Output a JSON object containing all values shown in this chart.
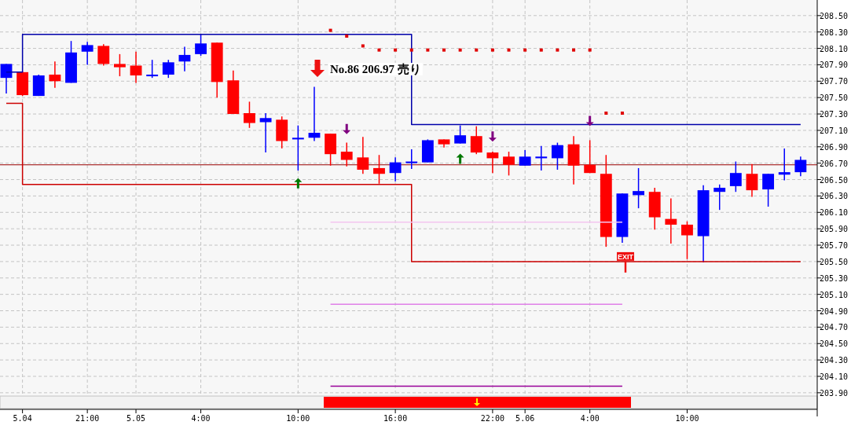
{
  "chart_data": {
    "type": "candlestick",
    "categories": [
      null,
      "5.04",
      null,
      null,
      null,
      "21:00",
      null,
      null,
      "5.05",
      null,
      null,
      null,
      "4:00",
      null,
      null,
      null,
      null,
      null,
      "10:00",
      null,
      null,
      null,
      null,
      null,
      "16:00",
      null,
      null,
      null,
      null,
      null,
      "22:00",
      null,
      "5.06",
      null,
      null,
      null,
      "4:00",
      null,
      null,
      null,
      null,
      null,
      "10:00",
      null,
      null,
      null,
      null,
      null,
      null,
      null
    ],
    "ohlc": [
      [
        207.74,
        207.91,
        207.55,
        207.91
      ],
      [
        207.81,
        207.82,
        207.52,
        207.53
      ],
      [
        207.52,
        207.78,
        207.52,
        207.77
      ],
      [
        207.78,
        207.94,
        207.62,
        207.7
      ],
      [
        207.68,
        208.19,
        207.68,
        208.05
      ],
      [
        208.06,
        208.18,
        207.9,
        208.14
      ],
      [
        208.13,
        208.15,
        207.89,
        207.91
      ],
      [
        207.91,
        208.03,
        207.76,
        207.87
      ],
      [
        207.89,
        208.06,
        207.68,
        207.77
      ],
      [
        207.76,
        207.96,
        207.74,
        207.78
      ],
      [
        207.78,
        207.96,
        207.74,
        207.93
      ],
      [
        207.94,
        208.12,
        207.82,
        208.02
      ],
      [
        208.03,
        208.27,
        208.01,
        208.16
      ],
      [
        208.17,
        208.17,
        207.5,
        207.69
      ],
      [
        207.71,
        207.83,
        207.3,
        207.3
      ],
      [
        207.31,
        207.45,
        207.13,
        207.19
      ],
      [
        207.2,
        207.31,
        206.83,
        207.25
      ],
      [
        207.23,
        207.27,
        206.88,
        206.97
      ],
      [
        206.99,
        207.16,
        206.61,
        207.01
      ],
      [
        207.01,
        207.63,
        206.97,
        207.07
      ],
      [
        207.06,
        207.06,
        206.67,
        206.81
      ],
      [
        206.84,
        206.95,
        206.66,
        206.74
      ],
      [
        206.77,
        207.02,
        206.57,
        206.62
      ],
      [
        206.64,
        206.8,
        206.45,
        206.57
      ],
      [
        206.58,
        206.77,
        206.48,
        206.71
      ],
      [
        206.7,
        206.87,
        206.63,
        206.72
      ],
      [
        206.71,
        206.99,
        206.71,
        206.98
      ],
      [
        206.99,
        206.99,
        206.89,
        206.93
      ],
      [
        206.94,
        207.16,
        206.94,
        207.04
      ],
      [
        207.03,
        207.15,
        206.81,
        206.83
      ],
      [
        206.83,
        206.84,
        206.58,
        206.76
      ],
      [
        206.78,
        206.84,
        206.55,
        206.68
      ],
      [
        206.67,
        206.86,
        206.67,
        206.78
      ],
      [
        206.76,
        206.91,
        206.61,
        206.78
      ],
      [
        206.76,
        206.95,
        206.62,
        206.92
      ],
      [
        206.93,
        207.03,
        206.44,
        206.67
      ],
      [
        206.68,
        206.98,
        206.58,
        206.58
      ],
      [
        206.57,
        206.8,
        205.68,
        205.8
      ],
      [
        205.8,
        206.33,
        205.73,
        206.33
      ],
      [
        206.31,
        206.64,
        206.15,
        206.36
      ],
      [
        206.35,
        206.4,
        205.89,
        206.04
      ],
      [
        206.02,
        206.27,
        205.72,
        205.95
      ],
      [
        205.95,
        205.99,
        205.53,
        205.82
      ],
      [
        205.81,
        206.43,
        205.49,
        206.37
      ],
      [
        206.35,
        206.44,
        206.13,
        206.4
      ],
      [
        206.42,
        206.72,
        206.35,
        206.58
      ],
      [
        206.57,
        206.69,
        206.29,
        206.37
      ],
      [
        206.38,
        206.57,
        206.17,
        206.57
      ],
      [
        206.56,
        206.88,
        206.49,
        206.59
      ],
      [
        206.59,
        206.78,
        206.54,
        206.74
      ]
    ],
    "colors": [
      "#0000ff",
      "#ff0000",
      "#0000ff",
      "#ff0000",
      "#0000ff",
      "#0000ff",
      "#ff0000",
      "#ff0000",
      "#ff0000",
      "#0000ff",
      "#0000ff",
      "#0000ff",
      "#0000ff",
      "#ff0000",
      "#ff0000",
      "#ff0000",
      "#0000ff",
      "#ff0000",
      "#0000ff",
      "#0000ff",
      "#ff0000",
      "#ff0000",
      "#ff0000",
      "#ff0000",
      "#0000ff",
      "#0000ff",
      "#0000ff",
      "#ff0000",
      "#0000ff",
      "#ff0000",
      "#ff0000",
      "#ff0000",
      "#0000ff",
      "#0000ff",
      "#0000ff",
      "#ff0000",
      "#ff0000",
      "#ff0000",
      "#0000ff",
      "#0000ff",
      "#ff0000",
      "#ff0000",
      "#ff0000",
      "#0000ff",
      "#0000ff",
      "#0000ff",
      "#ff0000",
      "#0000ff",
      "#0000ff",
      "#0000ff"
    ],
    "series": [
      {
        "type": "step",
        "color": "#0000aa",
        "values": [
          207.81,
          208.27,
          208.27,
          208.27,
          208.27,
          208.27,
          208.27,
          208.27,
          208.27,
          208.27,
          208.27,
          208.27,
          208.27,
          208.27,
          208.27,
          208.27,
          208.27,
          208.27,
          208.27,
          208.27,
          208.27,
          208.27,
          208.27,
          208.27,
          208.27,
          207.17,
          207.17,
          207.17,
          207.17,
          207.17,
          207.17,
          207.17,
          207.17,
          207.17,
          207.17,
          207.17,
          207.17,
          207.17,
          207.17,
          207.17,
          207.17,
          207.17,
          207.17,
          207.17,
          207.17,
          207.17,
          207.17,
          207.17,
          207.17,
          207.17
        ]
      },
      {
        "type": "step",
        "color": "#cc0000",
        "values": [
          207.43,
          206.44,
          206.44,
          206.44,
          206.44,
          206.44,
          206.44,
          206.44,
          206.44,
          206.44,
          206.44,
          206.44,
          206.44,
          206.44,
          206.44,
          206.44,
          206.44,
          206.44,
          206.44,
          206.44,
          206.44,
          206.44,
          206.44,
          206.44,
          206.44,
          205.5,
          205.5,
          205.5,
          205.5,
          205.5,
          205.5,
          205.5,
          205.5,
          205.5,
          205.5,
          205.5,
          205.5,
          205.5,
          205.5,
          205.5,
          205.5,
          205.5,
          205.5,
          205.5,
          205.5,
          205.5,
          205.5,
          205.5,
          205.5,
          205.5
        ]
      },
      {
        "type": "line",
        "color": "#f4c6f0",
        "values": [
          null,
          null,
          null,
          null,
          null,
          null,
          null,
          null,
          null,
          null,
          null,
          null,
          null,
          null,
          null,
          null,
          null,
          null,
          null,
          null,
          205.98,
          205.98,
          205.98,
          205.98,
          205.98,
          205.98,
          205.98,
          205.98,
          205.98,
          205.98,
          205.98,
          205.98,
          205.98,
          205.98,
          205.98,
          205.98,
          205.98,
          205.98,
          205.98,
          null,
          null,
          null,
          null,
          null,
          null,
          null,
          null,
          null,
          null,
          null
        ]
      },
      {
        "type": "line",
        "color": "#e080e8",
        "values": [
          null,
          null,
          null,
          null,
          null,
          null,
          null,
          null,
          null,
          null,
          null,
          null,
          null,
          null,
          null,
          null,
          null,
          null,
          null,
          null,
          204.98,
          204.98,
          204.98,
          204.98,
          204.98,
          204.98,
          204.98,
          204.98,
          204.98,
          204.98,
          204.98,
          204.98,
          204.98,
          204.98,
          204.98,
          204.98,
          204.98,
          204.98,
          204.98,
          null,
          null,
          null,
          null,
          null,
          null,
          null,
          null,
          null,
          null,
          null
        ]
      },
      {
        "type": "line",
        "color": "#990099",
        "values": [
          null,
          null,
          null,
          null,
          null,
          null,
          null,
          null,
          null,
          null,
          null,
          null,
          null,
          null,
          null,
          null,
          null,
          null,
          null,
          null,
          203.98,
          203.98,
          203.98,
          203.98,
          203.98,
          203.98,
          203.98,
          203.98,
          203.98,
          203.98,
          203.98,
          203.98,
          203.98,
          203.98,
          203.98,
          203.98,
          203.98,
          203.98,
          203.98,
          null,
          null,
          null,
          null,
          null,
          null,
          null,
          null,
          null,
          null,
          null
        ]
      },
      {
        "type": "scatter",
        "marker": "square",
        "color": "#e00000",
        "values": [
          null,
          null,
          null,
          null,
          null,
          null,
          null,
          null,
          null,
          null,
          null,
          null,
          null,
          null,
          null,
          null,
          null,
          null,
          null,
          null,
          208.32,
          208.25,
          208.13,
          208.08,
          208.08,
          208.08,
          208.08,
          208.08,
          208.08,
          208.08,
          208.08,
          208.08,
          208.08,
          208.08,
          208.08,
          208.08,
          208.08,
          207.31,
          207.31,
          null,
          null,
          null,
          null,
          null,
          null,
          null,
          null,
          null,
          null,
          null
        ]
      },
      {
        "type": "scatter",
        "marker": "triangle",
        "color": "#007700",
        "values": [
          null,
          null,
          null,
          null,
          null,
          null,
          null,
          null,
          null,
          null,
          null,
          null,
          null,
          null,
          null,
          null,
          null,
          null,
          206.45,
          null,
          null,
          null,
          null,
          null,
          null,
          null,
          null,
          null,
          206.75,
          null,
          null,
          null,
          null,
          null,
          null,
          null,
          null,
          null,
          null,
          null,
          null,
          null,
          null,
          null,
          null,
          null,
          null,
          null,
          null,
          null
        ]
      },
      {
        "type": "scatter",
        "marker": "triangle",
        "color": "#800080",
        "values": [
          null,
          null,
          null,
          null,
          null,
          null,
          null,
          null,
          null,
          null,
          null,
          null,
          null,
          null,
          null,
          null,
          null,
          null,
          null,
          null,
          null,
          207.12,
          null,
          null,
          null,
          null,
          null,
          null,
          null,
          null,
          207.03,
          null,
          null,
          null,
          null,
          null,
          207.22,
          null,
          null,
          null,
          null,
          null,
          null,
          null,
          null,
          null,
          null,
          null,
          null,
          null
        ]
      }
    ],
    "ref_lines": [
      {
        "axis": "y",
        "value": 206.68,
        "color": "#990000"
      }
    ],
    "annotations": [
      "No.86 206.97 売り",
      {
        "text": "EXIT",
        "y": 205.5
      }
    ],
    "ylim": [
      203.87,
      208.69
    ],
    "yticks": [
      {
        "value": 203.9,
        "label": "203.90"
      },
      {
        "value": 204.1,
        "label": "204.10"
      },
      {
        "value": 204.3,
        "label": "204.30"
      },
      {
        "value": 204.5,
        "label": "204.50"
      },
      {
        "value": 204.7,
        "label": "204.70"
      },
      {
        "value": 204.9,
        "label": "204.90"
      },
      {
        "value": 205.1,
        "label": "205.10"
      },
      {
        "value": 205.3,
        "label": "205.30"
      },
      {
        "value": 205.5,
        "label": "205.50"
      },
      {
        "value": 205.7,
        "label": "205.70"
      },
      {
        "value": 205.9,
        "label": "205.90"
      },
      {
        "value": 206.1,
        "label": "206.10"
      },
      {
        "value": 206.3,
        "label": "206.30"
      },
      {
        "value": 206.5,
        "label": "206.50"
      },
      {
        "value": 206.7,
        "label": "206.70"
      },
      {
        "value": 206.9,
        "label": "206.90"
      },
      {
        "value": 207.1,
        "label": "207.10"
      },
      {
        "value": 207.3,
        "label": "207.30"
      },
      {
        "value": 207.5,
        "label": "207.50"
      },
      {
        "value": 207.7,
        "label": "207.70"
      },
      {
        "value": 207.9,
        "label": "207.90"
      },
      {
        "value": 208.1,
        "label": "208.10"
      },
      {
        "value": 208.3,
        "label": "208.30"
      },
      {
        "value": 208.5,
        "label": "208.50"
      }
    ],
    "grid": true
  }
}
